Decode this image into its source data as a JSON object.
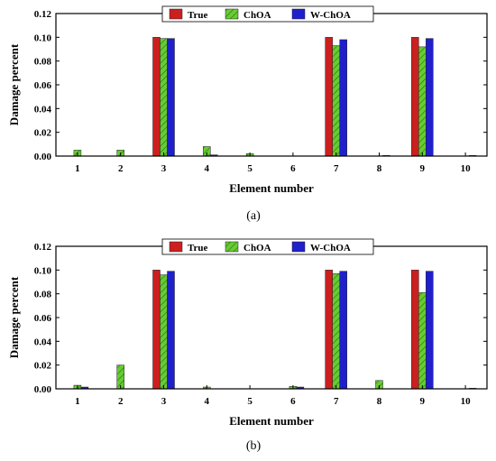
{
  "colors": {
    "True": "#cc1f1f",
    "ChOA": "#66cc33",
    "W-ChOA": "#1f1fcc",
    "hatch": "#2a6a10",
    "axis": "#000000"
  },
  "chart_data": [
    {
      "type": "bar",
      "caption": "(a)",
      "xlabel": "Element number",
      "ylabel": "Damage percent",
      "categories": [
        "1",
        "2",
        "3",
        "4",
        "5",
        "6",
        "7",
        "8",
        "9",
        "10"
      ],
      "ylim": [
        0,
        0.12
      ],
      "yticks": [
        "0.00",
        "0.02",
        "0.04",
        "0.06",
        "0.08",
        "0.10",
        "0.12"
      ],
      "legend_position": "top-center",
      "series": [
        {
          "name": "True",
          "values": [
            0,
            0,
            0.1,
            0,
            0,
            0,
            0.1,
            0,
            0.1,
            0
          ]
        },
        {
          "name": "ChOA",
          "values": [
            0.005,
            0.005,
            0.099,
            0.008,
            0.002,
            0,
            0.093,
            0,
            0.092,
            0
          ]
        },
        {
          "name": "W-ChOA",
          "values": [
            0,
            0,
            0.099,
            0.001,
            0,
            0,
            0.098,
            0.0005,
            0.099,
            0.0005
          ]
        }
      ]
    },
    {
      "type": "bar",
      "caption": "(b)",
      "xlabel": "Element number",
      "ylabel": "Damage percent",
      "categories": [
        "1",
        "2",
        "3",
        "4",
        "5",
        "6",
        "7",
        "8",
        "9",
        "10"
      ],
      "ylim": [
        0,
        0.12
      ],
      "yticks": [
        "0.00",
        "0.02",
        "0.04",
        "0.06",
        "0.08",
        "0.10",
        "0.12"
      ],
      "legend_position": "top-center",
      "series": [
        {
          "name": "True",
          "values": [
            0,
            0,
            0.1,
            0,
            0,
            0,
            0.1,
            0,
            0.1,
            0
          ]
        },
        {
          "name": "ChOA",
          "values": [
            0.003,
            0.02,
            0.096,
            0.0015,
            0,
            0.002,
            0.097,
            0.007,
            0.081,
            0
          ]
        },
        {
          "name": "W-ChOA",
          "values": [
            0.0015,
            0,
            0.099,
            0,
            0,
            0.0015,
            0.099,
            0,
            0.099,
            0.0005
          ]
        }
      ]
    }
  ]
}
